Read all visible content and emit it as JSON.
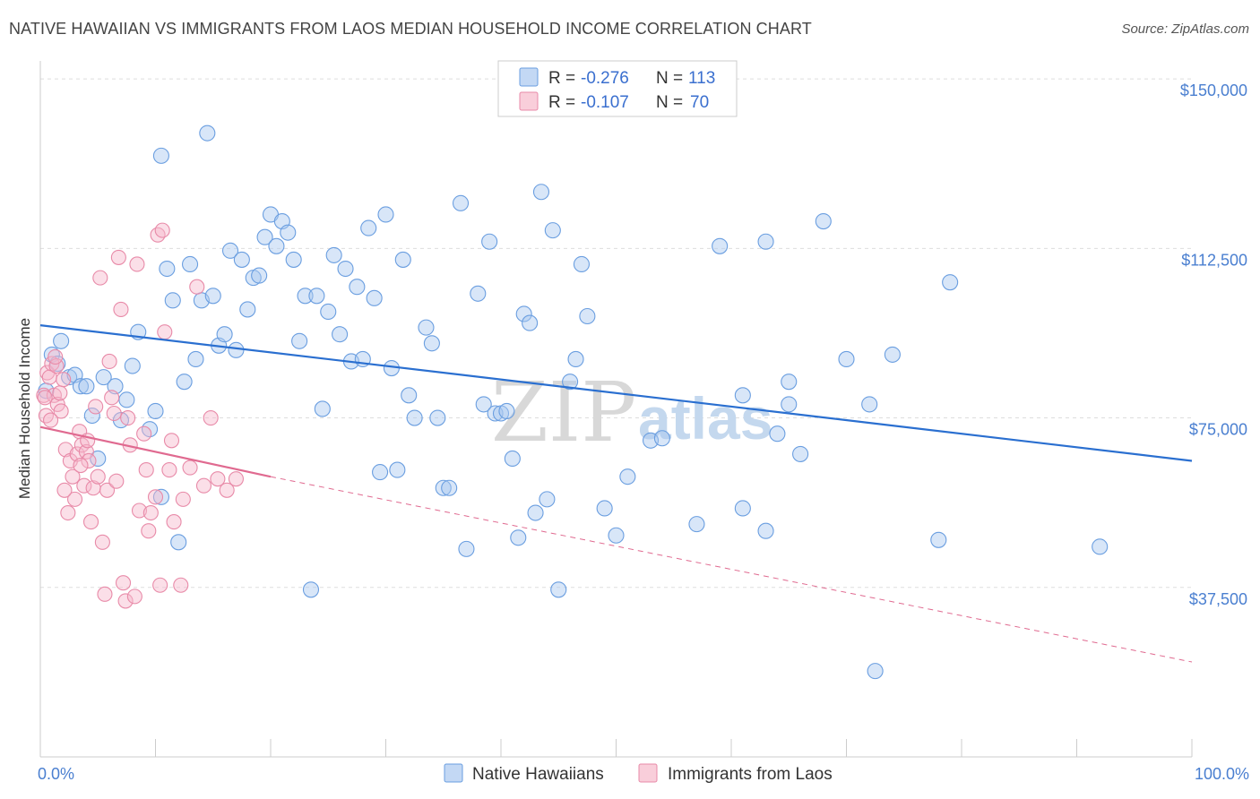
{
  "title": "NATIVE HAWAIIAN VS IMMIGRANTS FROM LAOS MEDIAN HOUSEHOLD INCOME CORRELATION CHART",
  "source": "Source: ZipAtlas.com",
  "watermark": {
    "zip": "ZIP",
    "atlas": "atlas"
  },
  "colors": {
    "blue": "#6a9ee0",
    "blue_fill": "#a9c8f0",
    "blue_line": "#2a6fd0",
    "pink": "#e88aa8",
    "pink_fill": "#f6b9cb",
    "pink_line": "#e06a90",
    "axis_text": "#4a7fd0",
    "grid": "#dddddd"
  },
  "legend": {
    "rows": [
      {
        "r_label": "R =",
        "r_value": "-0.276",
        "n_label": "N =",
        "n_value": "113"
      },
      {
        "r_label": "R =",
        "r_value": "-0.107",
        "n_label": "N =",
        "n_value": "70"
      }
    ]
  },
  "chart_data": {
    "type": "scatter",
    "xlabel": "",
    "ylabel": "Median Household Income",
    "xlim": [
      0,
      100
    ],
    "ylim": [
      0,
      152000
    ],
    "x_tick_labels": [
      "0.0%",
      "100.0%"
    ],
    "y_ticks": [
      37500,
      75000,
      112500,
      150000
    ],
    "y_tick_labels": [
      "$37,500",
      "$75,000",
      "$112,500",
      "$150,000"
    ],
    "series": [
      {
        "name": "Native Hawaiians",
        "color_key": "blue",
        "trend": {
          "x": [
            0,
            100
          ],
          "y": [
            95500,
            65500
          ],
          "style": "solid"
        },
        "points": [
          [
            0.5,
            81000
          ],
          [
            1,
            89000
          ],
          [
            1.5,
            87000
          ],
          [
            1.8,
            92000
          ],
          [
            2.5,
            84000
          ],
          [
            3,
            84500
          ],
          [
            3.5,
            82000
          ],
          [
            4,
            82000
          ],
          [
            4.5,
            75500
          ],
          [
            5,
            66000
          ],
          [
            5.5,
            84000
          ],
          [
            6.5,
            82000
          ],
          [
            7,
            74500
          ],
          [
            7.5,
            79000
          ],
          [
            8,
            86500
          ],
          [
            8.5,
            94000
          ],
          [
            9.5,
            72500
          ],
          [
            10,
            76500
          ],
          [
            10.5,
            57500
          ],
          [
            10.5,
            133000
          ],
          [
            11,
            108000
          ],
          [
            11.5,
            101000
          ],
          [
            12,
            47500
          ],
          [
            12.5,
            83000
          ],
          [
            13,
            109000
          ],
          [
            13.5,
            88000
          ],
          [
            14,
            101000
          ],
          [
            14.5,
            138000
          ],
          [
            15,
            102000
          ],
          [
            15.5,
            91000
          ],
          [
            16,
            93500
          ],
          [
            16.5,
            112000
          ],
          [
            17,
            90000
          ],
          [
            17.5,
            110000
          ],
          [
            18,
            99000
          ],
          [
            18.5,
            106000
          ],
          [
            19,
            106500
          ],
          [
            19.5,
            115000
          ],
          [
            20,
            120000
          ],
          [
            20.5,
            113000
          ],
          [
            21,
            118500
          ],
          [
            21.5,
            116000
          ],
          [
            22,
            110000
          ],
          [
            22.5,
            92000
          ],
          [
            23,
            102000
          ],
          [
            23.5,
            37000
          ],
          [
            24,
            102000
          ],
          [
            24.5,
            77000
          ],
          [
            25,
            98500
          ],
          [
            25.5,
            111000
          ],
          [
            26,
            93500
          ],
          [
            26.5,
            108000
          ],
          [
            27,
            87500
          ],
          [
            27.5,
            104000
          ],
          [
            28,
            88000
          ],
          [
            28.5,
            117000
          ],
          [
            29,
            101500
          ],
          [
            29.5,
            63000
          ],
          [
            30,
            120000
          ],
          [
            30.5,
            86000
          ],
          [
            31,
            63500
          ],
          [
            31.5,
            110000
          ],
          [
            32,
            80000
          ],
          [
            32.5,
            75000
          ],
          [
            33.5,
            95000
          ],
          [
            34,
            91500
          ],
          [
            34.5,
            75000
          ],
          [
            35,
            59500
          ],
          [
            35.5,
            59500
          ],
          [
            36.5,
            122500
          ],
          [
            37,
            46000
          ],
          [
            38,
            102500
          ],
          [
            38.5,
            78000
          ],
          [
            39,
            114000
          ],
          [
            39.5,
            76000
          ],
          [
            40,
            76000
          ],
          [
            40.5,
            76500
          ],
          [
            41,
            66000
          ],
          [
            41.5,
            48500
          ],
          [
            42,
            98000
          ],
          [
            42.5,
            96000
          ],
          [
            43,
            54000
          ],
          [
            43.5,
            125000
          ],
          [
            44,
            57000
          ],
          [
            44.5,
            116500
          ],
          [
            45,
            37000
          ],
          [
            46,
            83000
          ],
          [
            46.5,
            88000
          ],
          [
            47,
            109000
          ],
          [
            47.5,
            97500
          ],
          [
            49,
            55000
          ],
          [
            50,
            49000
          ],
          [
            51,
            62000
          ],
          [
            53,
            70000
          ],
          [
            54,
            70500
          ],
          [
            57,
            51500
          ],
          [
            59,
            113000
          ],
          [
            61,
            55000
          ],
          [
            61,
            80000
          ],
          [
            63,
            114000
          ],
          [
            63,
            50000
          ],
          [
            64,
            71500
          ],
          [
            65,
            78000
          ],
          [
            65,
            83000
          ],
          [
            66,
            67000
          ],
          [
            68,
            118500
          ],
          [
            70,
            88000
          ],
          [
            72,
            78000
          ],
          [
            72.5,
            19000
          ],
          [
            74,
            89000
          ],
          [
            78,
            48000
          ],
          [
            79,
            105000
          ],
          [
            92,
            46500
          ]
        ]
      },
      {
        "name": "Immigrants from Laos",
        "color_key": "pink",
        "trend": {
          "x": [
            0,
            20
          ],
          "y": [
            73000,
            62000
          ],
          "style": "solid"
        },
        "trend_extension": {
          "x": [
            20,
            100
          ],
          "y": [
            62000,
            21000
          ],
          "style": "dashed"
        },
        "points": [
          [
            0.3,
            80000
          ],
          [
            0.5,
            75500
          ],
          [
            0.6,
            85000
          ],
          [
            0.8,
            84000
          ],
          [
            1,
            87000
          ],
          [
            1.2,
            80000
          ],
          [
            1.4,
            86500
          ],
          [
            1.5,
            78000
          ],
          [
            1.7,
            80500
          ],
          [
            1.8,
            76500
          ],
          [
            2,
            83500
          ],
          [
            2.2,
            68000
          ],
          [
            2.4,
            54000
          ],
          [
            2.6,
            65500
          ],
          [
            2.8,
            62000
          ],
          [
            3,
            57000
          ],
          [
            3.2,
            67000
          ],
          [
            3.4,
            72000
          ],
          [
            3.6,
            69000
          ],
          [
            3.8,
            60000
          ],
          [
            4,
            67500
          ],
          [
            4.2,
            65500
          ],
          [
            4.4,
            52000
          ],
          [
            4.6,
            59500
          ],
          [
            4.8,
            77500
          ],
          [
            5,
            62000
          ],
          [
            5.2,
            106000
          ],
          [
            5.4,
            47500
          ],
          [
            5.6,
            36000
          ],
          [
            5.8,
            59000
          ],
          [
            6,
            87500
          ],
          [
            6.2,
            79500
          ],
          [
            6.4,
            76000
          ],
          [
            6.6,
            61000
          ],
          [
            6.8,
            110500
          ],
          [
            7,
            99000
          ],
          [
            7.2,
            38500
          ],
          [
            7.4,
            34500
          ],
          [
            7.6,
            75000
          ],
          [
            7.8,
            69000
          ],
          [
            8.2,
            35500
          ],
          [
            8.4,
            109000
          ],
          [
            8.6,
            54500
          ],
          [
            9,
            71500
          ],
          [
            9.2,
            63500
          ],
          [
            9.4,
            50000
          ],
          [
            9.6,
            54000
          ],
          [
            10,
            57500
          ],
          [
            10.2,
            115500
          ],
          [
            10.4,
            38000
          ],
          [
            10.6,
            116500
          ],
          [
            10.8,
            94000
          ],
          [
            11.2,
            63500
          ],
          [
            11.4,
            70000
          ],
          [
            11.6,
            52000
          ],
          [
            12.2,
            38000
          ],
          [
            12.4,
            57000
          ],
          [
            13,
            64000
          ],
          [
            13.6,
            104000
          ],
          [
            14.2,
            60000
          ],
          [
            14.8,
            75000
          ],
          [
            15.4,
            61500
          ],
          [
            16.2,
            59000
          ],
          [
            17,
            61500
          ],
          [
            0.4,
            79500
          ],
          [
            0.9,
            74500
          ],
          [
            1.3,
            88500
          ],
          [
            2.1,
            59000
          ],
          [
            3.5,
            64500
          ],
          [
            4.1,
            70000
          ]
        ]
      }
    ]
  },
  "bottom_legend": [
    "Native Hawaiians",
    "Immigrants from Laos"
  ]
}
